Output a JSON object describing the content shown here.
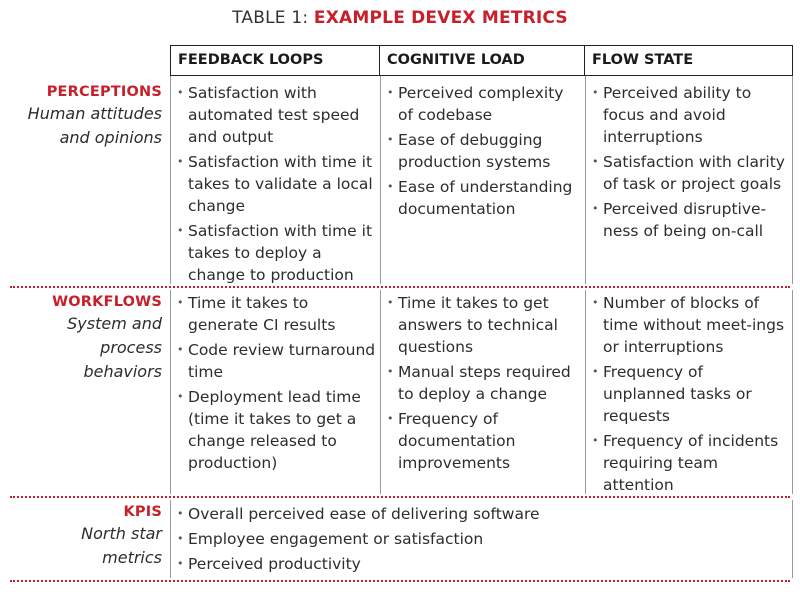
{
  "title": {
    "prefix": "TABLE 1:",
    "accent": "EXAMPLE DEVEX METRICS"
  },
  "columns": [
    "FEEDBACK LOOPS",
    "COGNITIVE LOAD",
    "FLOW STATE"
  ],
  "rows": [
    {
      "category": "PERCEPTIONS",
      "description": [
        "Human attitudes",
        "and opinions"
      ],
      "cells": [
        [
          "Satisfaction with automated test  speed and output",
          "Satisfaction with time it takes to validate a local change",
          "Satisfaction with time it takes to deploy a change to production"
        ],
        [
          "Perceived complexity of codebase",
          "Ease of debugging production systems",
          "Ease of understanding documentation"
        ],
        [
          "Perceived ability to focus and avoid interruptions",
          "Satisfaction with clarity of task or project goals",
          "Perceived disruptive-ness of being on-call"
        ]
      ]
    },
    {
      "category": "WORKFLOWS",
      "description": [
        "System and",
        "process",
        "behaviors"
      ],
      "cells": [
        [
          "Time it takes to generate CI results",
          "Code review turnaround time",
          "Deployment lead time (time it takes to get a change released to production)"
        ],
        [
          "Time it takes to get answers to technical questions",
          "Manual steps required to deploy a change",
          "Frequency of documentation improvements"
        ],
        [
          "Number of blocks of time without meet-ings or interruptions",
          "Frequency of unplanned tasks or requests",
          "Frequency of incidents requiring team attention"
        ]
      ]
    },
    {
      "category": "KPIS",
      "description": [
        "North star",
        "metrics"
      ],
      "items": [
        "Overall perceived ease of delivering software",
        "Employee engagement or satisfaction",
        "Perceived productivity"
      ]
    }
  ]
}
